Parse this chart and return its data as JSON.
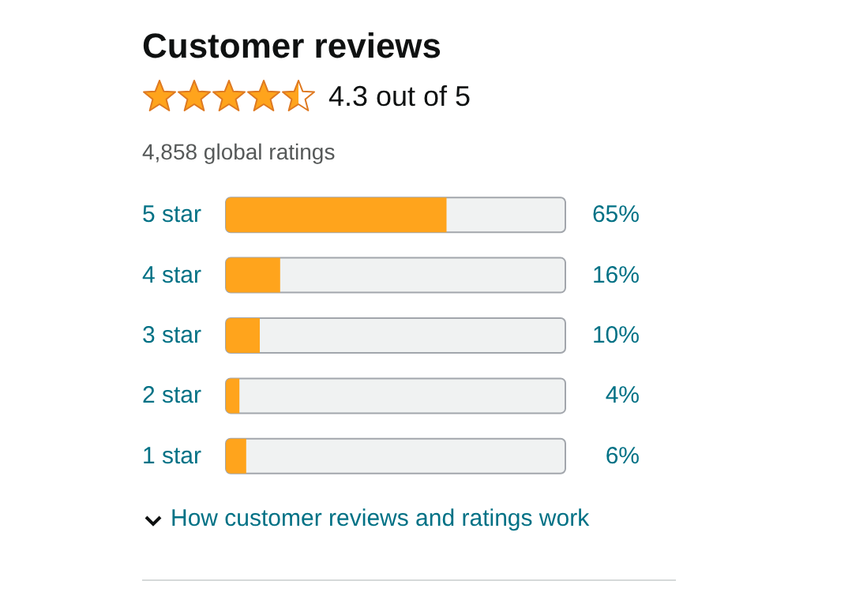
{
  "chart_data": {
    "type": "bar",
    "orientation": "horizontal",
    "title": "Customer reviews",
    "subtitle": "4.3 out of 5",
    "annotations": [
      "4,858 global ratings",
      "How customer reviews and ratings work"
    ],
    "categories": [
      "5 star",
      "4 star",
      "3 star",
      "2 star",
      "1 star"
    ],
    "values": [
      65,
      16,
      10,
      4,
      6
    ],
    "value_labels": [
      "65%",
      "16%",
      "10%",
      "4%",
      "6%"
    ],
    "color": "#ffa41c",
    "xlim": [
      0,
      100
    ],
    "tick_labels": "y"
  }
}
